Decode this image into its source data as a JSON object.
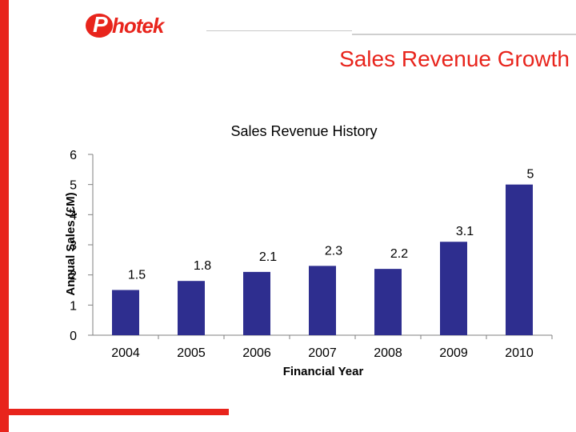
{
  "header": {
    "logo_text": "Photek",
    "slide_title": "Sales Revenue Growth"
  },
  "colors": {
    "brand_red": "#e8241c",
    "bar": "#2e2e8f",
    "axis": "#7f7f7f"
  },
  "chart_data": {
    "type": "bar",
    "title": "Sales Revenue History",
    "xlabel": "Financial Year",
    "ylabel": "Annual Sales (£M)",
    "categories": [
      "2004",
      "2005",
      "2006",
      "2007",
      "2008",
      "2009",
      "2010"
    ],
    "values": [
      1.5,
      1.8,
      2.1,
      2.3,
      2.2,
      3.1,
      5
    ],
    "data_labels": [
      "1.5",
      "1.8",
      "2.1",
      "2.3",
      "2.2",
      "3.1",
      "5"
    ],
    "ylim": [
      0,
      6
    ],
    "yticks": [
      0,
      1,
      2,
      3,
      4,
      5,
      6
    ],
    "grid": false,
    "legend": "none"
  }
}
